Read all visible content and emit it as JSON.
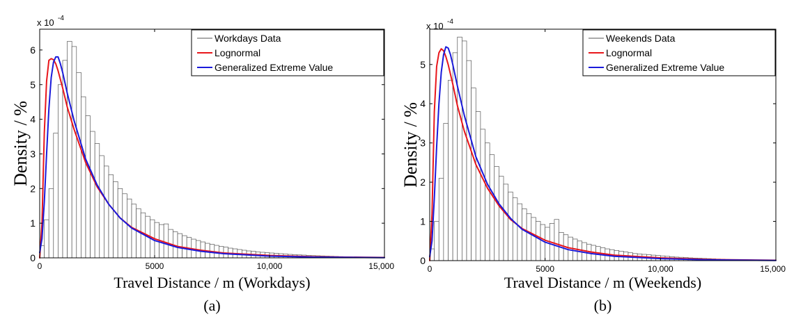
{
  "chart_data": [
    {
      "type": "bar",
      "panel_label": "(a)",
      "xlabel": "Travel Distance / m (Workdays)",
      "ylabel": "Density / %",
      "y_exponent_label": "x 10",
      "y_exponent_power": "-4",
      "xlim": [
        0,
        15000
      ],
      "ylim": [
        0,
        6.6
      ],
      "x_ticks": [
        0,
        5000,
        10000,
        15000
      ],
      "x_tick_labels": [
        "0",
        "5000",
        "10,000",
        "15,000"
      ],
      "y_ticks": [
        0,
        1,
        2,
        3,
        4,
        5,
        6
      ],
      "y_tick_labels": [
        "0",
        "1",
        "2",
        "3",
        "4",
        "5",
        "6"
      ],
      "grid": false,
      "legend_position": "top-right",
      "legend": [
        "Workdays Data",
        "Lognormal",
        "Generalized Extreme Value"
      ],
      "colors": {
        "histogram": "#555555",
        "lognormal": "#e8161b",
        "gev": "#1a1adb"
      },
      "histogram": {
        "bin_width": 200,
        "bin_start": 0,
        "values": [
          0.35,
          1.1,
          2.0,
          3.6,
          5.0,
          5.7,
          6.25,
          6.1,
          5.35,
          4.65,
          4.1,
          3.65,
          3.3,
          2.95,
          2.65,
          2.4,
          2.2,
          2.0,
          1.85,
          1.7,
          1.55,
          1.42,
          1.3,
          1.2,
          1.1,
          1.02,
          0.96,
          0.98,
          0.82,
          0.75,
          0.7,
          0.64,
          0.59,
          0.54,
          0.5,
          0.46,
          0.42,
          0.39,
          0.36,
          0.33,
          0.31,
          0.28,
          0.26,
          0.24,
          0.22,
          0.2,
          0.19,
          0.17,
          0.16,
          0.15,
          0.14,
          0.13,
          0.12,
          0.11,
          0.1,
          0.09,
          0.085,
          0.08,
          0.07,
          0.065,
          0.06,
          0.055,
          0.05,
          0.045,
          0.04,
          0.035,
          0.03,
          0.028,
          0.025,
          0.022,
          0.02,
          0.018,
          0.016,
          0.014,
          0.012
        ]
      },
      "series": [
        {
          "name": "Lognormal",
          "x": [
            0,
            100,
            200,
            300,
            400,
            500,
            600,
            700,
            800,
            1000,
            1200,
            1500,
            2000,
            2500,
            3000,
            3500,
            4000,
            5000,
            6000,
            7000,
            8000,
            10000,
            12000,
            15000
          ],
          "values": [
            0,
            1.0,
            3.6,
            5.1,
            5.7,
            5.75,
            5.72,
            5.6,
            5.4,
            4.9,
            4.35,
            3.7,
            2.75,
            2.05,
            1.55,
            1.15,
            0.88,
            0.55,
            0.33,
            0.22,
            0.14,
            0.07,
            0.03,
            0.01
          ]
        },
        {
          "name": "Generalized Extreme Value",
          "x": [
            0,
            100,
            200,
            300,
            400,
            500,
            600,
            700,
            800,
            900,
            1000,
            1200,
            1500,
            2000,
            2500,
            3000,
            3500,
            4000,
            5000,
            6000,
            7000,
            8000,
            10000,
            12000,
            15000
          ],
          "values": [
            0.15,
            0.55,
            1.6,
            3.0,
            4.3,
            5.2,
            5.65,
            5.8,
            5.8,
            5.6,
            5.35,
            4.75,
            3.95,
            2.85,
            2.1,
            1.55,
            1.15,
            0.86,
            0.5,
            0.3,
            0.19,
            0.12,
            0.05,
            0.02,
            0.005
          ]
        }
      ]
    },
    {
      "type": "bar",
      "panel_label": "(b)",
      "xlabel": "Travel Distance / m (Weekends)",
      "ylabel": "Density / %",
      "y_exponent_label": "x 10",
      "y_exponent_power": "-4",
      "xlim": [
        0,
        15000
      ],
      "ylim": [
        0,
        5.9
      ],
      "x_ticks": [
        0,
        5000,
        10000,
        15000
      ],
      "x_tick_labels": [
        "0",
        "5000",
        "10,000",
        "15,000"
      ],
      "y_ticks": [
        0,
        1,
        2,
        3,
        4,
        5
      ],
      "y_tick_labels": [
        "0",
        "1",
        "2",
        "3",
        "4",
        "5"
      ],
      "grid": false,
      "legend_position": "top-right",
      "legend": [
        "Weekends Data",
        "Lognormal",
        "Generalized Extreme Value"
      ],
      "colors": {
        "histogram": "#555555",
        "lognormal": "#e8161b",
        "gev": "#1a1adb"
      },
      "histogram": {
        "bin_width": 200,
        "bin_start": 0,
        "values": [
          0.3,
          1.0,
          2.1,
          3.5,
          4.6,
          5.3,
          5.7,
          5.6,
          5.1,
          4.4,
          3.8,
          3.35,
          3.0,
          2.7,
          2.4,
          2.15,
          1.95,
          1.75,
          1.6,
          1.45,
          1.32,
          1.2,
          1.1,
          1.0,
          0.92,
          0.85,
          0.95,
          1.05,
          0.72,
          0.66,
          0.6,
          0.55,
          0.5,
          0.46,
          0.42,
          0.39,
          0.36,
          0.33,
          0.3,
          0.28,
          0.26,
          0.24,
          0.22,
          0.2,
          0.18,
          0.17,
          0.16,
          0.15,
          0.14,
          0.13,
          0.12,
          0.11,
          0.1,
          0.09,
          0.085,
          0.08,
          0.07,
          0.065,
          0.06,
          0.055,
          0.05,
          0.045,
          0.04,
          0.035,
          0.03,
          0.028,
          0.025,
          0.022,
          0.02,
          0.018,
          0.016,
          0.014,
          0.012
        ]
      },
      "series": [
        {
          "name": "Lognormal",
          "x": [
            0,
            100,
            200,
            300,
            400,
            500,
            600,
            700,
            800,
            1000,
            1200,
            1500,
            2000,
            2500,
            3000,
            3500,
            4000,
            5000,
            6000,
            7000,
            8000,
            10000,
            12000,
            15000
          ],
          "values": [
            0,
            1.2,
            3.8,
            4.95,
            5.3,
            5.4,
            5.35,
            5.2,
            5.0,
            4.5,
            3.95,
            3.3,
            2.45,
            1.85,
            1.4,
            1.05,
            0.82,
            0.52,
            0.33,
            0.22,
            0.14,
            0.07,
            0.03,
            0.01
          ]
        },
        {
          "name": "Generalized Extreme Value",
          "x": [
            0,
            100,
            200,
            300,
            400,
            500,
            600,
            700,
            800,
            900,
            1000,
            1200,
            1500,
            2000,
            2500,
            3000,
            3500,
            4000,
            5000,
            6000,
            7000,
            8000,
            10000,
            12000,
            15000
          ],
          "values": [
            0.1,
            0.5,
            1.6,
            2.9,
            4.0,
            4.8,
            5.25,
            5.45,
            5.42,
            5.25,
            5.0,
            4.45,
            3.7,
            2.65,
            1.95,
            1.45,
            1.08,
            0.8,
            0.47,
            0.28,
            0.18,
            0.11,
            0.05,
            0.02,
            0.005
          ]
        }
      ]
    }
  ]
}
